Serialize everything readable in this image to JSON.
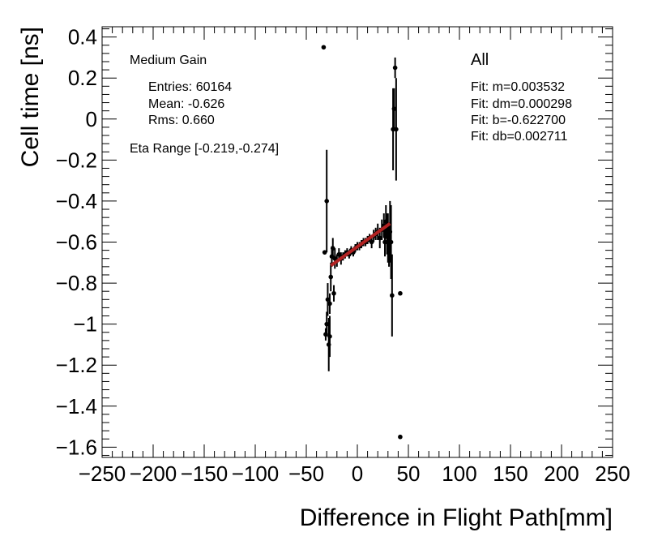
{
  "chart_data": {
    "type": "scatter",
    "xlabel": "Difference in Flight Path[mm]",
    "ylabel": "Cell time [ns]",
    "xlim": [
      -250,
      250
    ],
    "ylim": [
      -1.65,
      0.45
    ],
    "x_ticks": [
      -250,
      -200,
      -150,
      -100,
      -50,
      0,
      50,
      100,
      150,
      200,
      250
    ],
    "x_tick_labels": [
      "−250",
      "−200",
      "−150",
      "−100",
      "−50",
      "0",
      "50",
      "100",
      "150",
      "200",
      "250"
    ],
    "y_ticks": [
      0.4,
      0.2,
      0,
      -0.2,
      -0.4,
      -0.6,
      -0.8,
      -1,
      -1.2,
      -1.4,
      -1.6
    ],
    "y_tick_labels": [
      "0.4",
      "0.2",
      "0",
      "−0.2",
      "−0.4",
      "−0.6",
      "−0.8",
      "−1",
      "−1.2",
      "−1.4",
      "−1.6"
    ],
    "stats_box": {
      "title": "Medium Gain",
      "entries": "Entries: 60164",
      "mean": "Mean: -0.626",
      "rms": "Rms: 0.660",
      "eta_range": "Eta Range [-0.219,-0.274]"
    },
    "fit_box": {
      "title": "All",
      "m": "Fit: m=0.003532",
      "dm": "Fit: dm=0.000298",
      "b": "Fit: b=-0.622700",
      "db": "Fit: db=0.002711"
    },
    "fit_line": {
      "slope": 0.003532,
      "intercept": -0.6227,
      "x_range": [
        -26,
        32
      ],
      "color": "#b22222"
    },
    "points": [
      {
        "x": -33,
        "y": 0.35,
        "err": 0
      },
      {
        "x": -32,
        "y": -0.65,
        "err": 0
      },
      {
        "x": -30,
        "y": -0.4,
        "err": 0.25
      },
      {
        "x": -31,
        "y": -1.05,
        "err": 0.03
      },
      {
        "x": -30,
        "y": -1.0,
        "err": 0.06
      },
      {
        "x": -29,
        "y": -0.88,
        "err": 0.08
      },
      {
        "x": -28,
        "y": -1.1,
        "err": 0.13
      },
      {
        "x": -27,
        "y": -1.06,
        "err": 0.1
      },
      {
        "x": -27,
        "y": -0.9,
        "err": 0.05
      },
      {
        "x": -26,
        "y": -0.77,
        "err": 0.07
      },
      {
        "x": -25,
        "y": -0.67,
        "err": 0.05
      },
      {
        "x": -24,
        "y": -0.63,
        "err": 0.05
      },
      {
        "x": -23,
        "y": -0.85,
        "err": 0.04
      },
      {
        "x": -22,
        "y": -0.68,
        "err": 0.05
      },
      {
        "x": -20,
        "y": -0.69,
        "err": 0.03
      },
      {
        "x": -18,
        "y": -0.66,
        "err": 0.03
      },
      {
        "x": -16,
        "y": -0.68,
        "err": 0.03
      },
      {
        "x": -14,
        "y": -0.67,
        "err": 0.02
      },
      {
        "x": -12,
        "y": -0.66,
        "err": 0.02
      },
      {
        "x": -10,
        "y": -0.65,
        "err": 0.02
      },
      {
        "x": -8,
        "y": -0.66,
        "err": 0.02
      },
      {
        "x": -6,
        "y": -0.64,
        "err": 0.02
      },
      {
        "x": -4,
        "y": -0.65,
        "err": 0.02
      },
      {
        "x": -2,
        "y": -0.63,
        "err": 0.02
      },
      {
        "x": 0,
        "y": -0.62,
        "err": 0.02
      },
      {
        "x": 2,
        "y": -0.62,
        "err": 0.02
      },
      {
        "x": 4,
        "y": -0.61,
        "err": 0.02
      },
      {
        "x": 6,
        "y": -0.6,
        "err": 0.02
      },
      {
        "x": 8,
        "y": -0.6,
        "err": 0.02
      },
      {
        "x": 10,
        "y": -0.59,
        "err": 0.02
      },
      {
        "x": 12,
        "y": -0.58,
        "err": 0.02
      },
      {
        "x": 14,
        "y": -0.6,
        "err": 0.03
      },
      {
        "x": 16,
        "y": -0.57,
        "err": 0.03
      },
      {
        "x": 18,
        "y": -0.56,
        "err": 0.03
      },
      {
        "x": 20,
        "y": -0.55,
        "err": 0.04
      },
      {
        "x": 22,
        "y": -0.58,
        "err": 0.05
      },
      {
        "x": 24,
        "y": -0.54,
        "err": 0.05
      },
      {
        "x": 26,
        "y": -0.52,
        "err": 0.06
      },
      {
        "x": 27,
        "y": -0.6,
        "err": 0.07
      },
      {
        "x": 28,
        "y": -0.5,
        "err": 0.08
      },
      {
        "x": 29,
        "y": -0.56,
        "err": 0.1
      },
      {
        "x": 30,
        "y": -0.58,
        "err": 0.12
      },
      {
        "x": 31,
        "y": -0.62,
        "err": 0.1
      },
      {
        "x": 32,
        "y": -0.55,
        "err": 0.15
      },
      {
        "x": 33,
        "y": -0.6,
        "err": 0.18
      },
      {
        "x": 34,
        "y": -0.86,
        "err": 0.2
      },
      {
        "x": 35,
        "y": -0.05,
        "err": 0.2
      },
      {
        "x": 36,
        "y": 0.05,
        "err": 0.1
      },
      {
        "x": 37,
        "y": 0.25,
        "err": 0.05
      },
      {
        "x": 38,
        "y": -0.05,
        "err": 0.25
      },
      {
        "x": 42,
        "y": -0.85,
        "err": 0
      },
      {
        "x": 42,
        "y": -1.55,
        "err": 0
      }
    ]
  }
}
